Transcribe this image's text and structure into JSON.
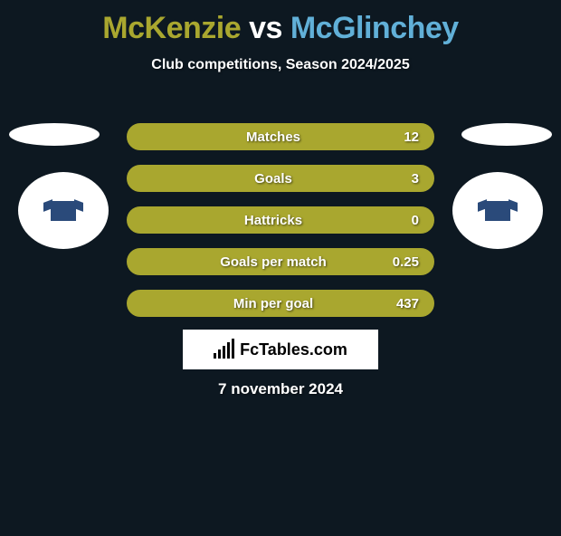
{
  "title": {
    "player1": "McKenzie",
    "vs": "vs",
    "player2": "McGlinchey",
    "color1": "#a9a72f",
    "colorVs": "#ffffff",
    "color2": "#61b0d8"
  },
  "subtitle": "Club competitions, Season 2024/2025",
  "bars": {
    "fill_color": "#a9a72f",
    "empty_color": "transparent",
    "border_color": "#a9a72f",
    "items": [
      {
        "label": "Matches",
        "value": "12",
        "fill_pct": 100
      },
      {
        "label": "Goals",
        "value": "3",
        "fill_pct": 100
      },
      {
        "label": "Hattricks",
        "value": "0",
        "fill_pct": 100
      },
      {
        "label": "Goals per match",
        "value": "0.25",
        "fill_pct": 100
      },
      {
        "label": "Min per goal",
        "value": "437",
        "fill_pct": 100
      }
    ]
  },
  "logo_text": "FcTables.com",
  "date": "7 november 2024",
  "background_color": "#0d1821"
}
